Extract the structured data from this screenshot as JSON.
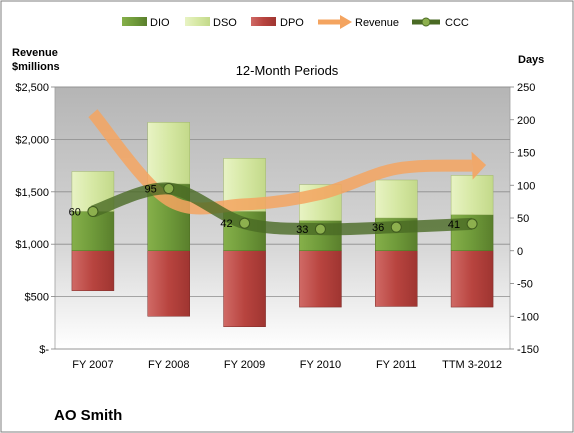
{
  "chart_data": {
    "type": "bar",
    "subtitle": "12-Month Periods",
    "company": "AO Smith",
    "categories": [
      "FY 2007",
      "FY 2008",
      "FY 2009",
      "FY 2010",
      "FY 2011",
      "TTM 3-2012"
    ],
    "left_axis": {
      "title_line1": "Revenue",
      "title_line2": "$millions",
      "ylim": [
        0,
        2500
      ],
      "ticks": [
        "$-",
        "$500",
        "$1,000",
        "$1,500",
        "$2,000",
        "$2,500"
      ],
      "tick_values": [
        0,
        500,
        1000,
        1500,
        2000,
        2500
      ]
    },
    "right_axis": {
      "title": "Days",
      "ylim": [
        -150,
        250
      ],
      "ticks": [
        "250",
        "200",
        "150",
        "100",
        "50",
        "0",
        "-50",
        "-100",
        "-150"
      ],
      "tick_values": [
        250,
        200,
        150,
        100,
        50,
        0,
        -50,
        -100,
        -150
      ]
    },
    "series": [
      {
        "name": "DIO",
        "axis": "right",
        "kind": "stacked-bar",
        "color": "#6f9a3a",
        "values": [
          60,
          102,
          60,
          46,
          50,
          55
        ]
      },
      {
        "name": "DSO",
        "axis": "right",
        "kind": "stacked-bar",
        "color": "#d6e8a4",
        "values": [
          61,
          94,
          81,
          55,
          58,
          60
        ]
      },
      {
        "name": "DPO",
        "axis": "right",
        "kind": "stacked-bar-negative",
        "color": "#c0504d",
        "values": [
          -61,
          -100,
          -116,
          -86,
          -85,
          -86
        ]
      },
      {
        "name": "Revenue",
        "axis": "left",
        "kind": "line",
        "color": "#f4a460",
        "values": [
          2250,
          1420,
          1380,
          1480,
          1720,
          1750
        ]
      },
      {
        "name": "CCC",
        "axis": "right",
        "kind": "line",
        "color": "#4a6a24",
        "values": [
          60,
          95,
          42,
          33,
          36,
          41
        ],
        "labels": [
          "60",
          "95",
          "42",
          "33",
          "36",
          "41"
        ]
      }
    ],
    "legend": {
      "placement": "top",
      "items": [
        {
          "name": "DIO",
          "icon": "bar-swatch",
          "color": "#6f9a3a"
        },
        {
          "name": "DSO",
          "icon": "bar-swatch",
          "color": "#d6e8a4"
        },
        {
          "name": "DPO",
          "icon": "bar-swatch",
          "color": "#c0504d"
        },
        {
          "name": "Revenue",
          "icon": "arrow-icon",
          "color": "#f4a460"
        },
        {
          "name": "CCC",
          "icon": "line-marker-icon",
          "color": "#4a6a24"
        }
      ]
    },
    "grid": true
  }
}
